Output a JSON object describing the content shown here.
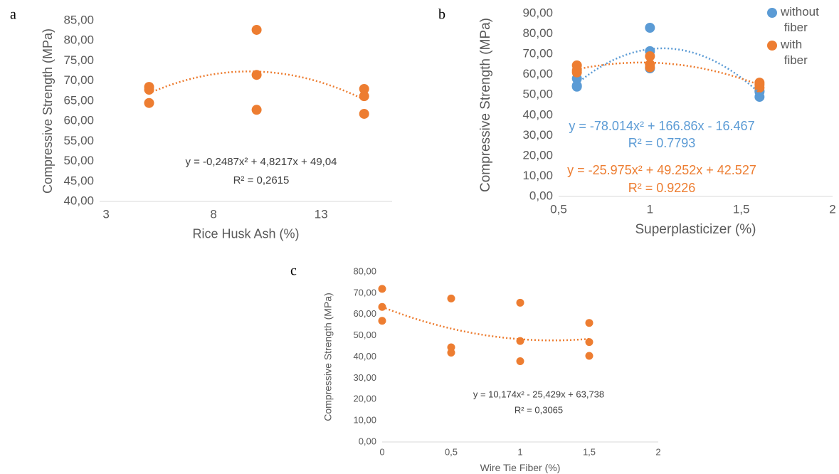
{
  "chart_data": [
    {
      "type": "scatter",
      "panel": "a",
      "x_label": "Rice Husk Ash (%)",
      "y_label": "Compressive Strength (MPa)",
      "x": [
        5,
        5,
        5,
        10,
        10,
        10,
        15,
        15,
        15
      ],
      "values": [
        68.5,
        67.8,
        64.5,
        82.7,
        71.5,
        62.8,
        68.0,
        66.2,
        61.8
      ],
      "color": "#ed7d31",
      "xlim": [
        2.7,
        16.3
      ],
      "xticks": [
        3,
        8,
        13
      ],
      "ylim": [
        40,
        85
      ],
      "yticks": [
        {
          "value": 40,
          "label": "40,00"
        },
        {
          "value": 45,
          "label": "45,00"
        },
        {
          "value": 50,
          "label": "50,00"
        },
        {
          "value": 55,
          "label": "55,00"
        },
        {
          "value": 60,
          "label": "60,00"
        },
        {
          "value": 65,
          "label": "65,00"
        },
        {
          "value": 70,
          "label": "70,00"
        },
        {
          "value": 75,
          "label": "75,00"
        },
        {
          "value": 80,
          "label": "80,00"
        },
        {
          "value": 85,
          "label": "85,00"
        }
      ],
      "annotations": [
        {
          "text": "y = -0,2487x² + 4,8217x + 49,04",
          "color": "#404040"
        },
        {
          "text": "R² = 0,2615",
          "color": "#404040"
        }
      ]
    },
    {
      "type": "scatter",
      "panel": "b",
      "x_label": "Superplasticizer (%)",
      "y_label": "Compressive Strength (MPa)",
      "series": [
        {
          "name": "without fiber",
          "color": "#5b9bd5",
          "x": [
            0.6,
            0.6,
            0.6,
            1,
            1,
            1,
            1.6,
            1.6,
            1.6
          ],
          "values": [
            58,
            54.5,
            54,
            83,
            71.5,
            63,
            52,
            49,
            51.5
          ]
        },
        {
          "name": "with fiber",
          "color": "#ed7d31",
          "x": [
            0.6,
            0.6,
            0.6,
            1,
            1,
            1,
            1.6,
            1.6,
            1.6
          ],
          "values": [
            64.5,
            62,
            61,
            69,
            65,
            63.5,
            56,
            55,
            53.5
          ]
        }
      ],
      "xlim": [
        0.5,
        2
      ],
      "xticks": [
        {
          "value": 0.5,
          "label": "0,5"
        },
        1,
        {
          "value": 1.5,
          "label": "1,5"
        },
        2
      ],
      "ylim": [
        0,
        90
      ],
      "yticks": [
        {
          "value": 0,
          "label": "0,00"
        },
        {
          "value": 10,
          "label": "10,00"
        },
        {
          "value": 20,
          "label": "20,00"
        },
        {
          "value": 30,
          "label": "30,00"
        },
        {
          "value": 40,
          "label": "40,00"
        },
        {
          "value": 50,
          "label": "50,00"
        },
        {
          "value": 60,
          "label": "60,00"
        },
        {
          "value": 70,
          "label": "70,00"
        },
        {
          "value": 80,
          "label": "80,00"
        },
        {
          "value": 90,
          "label": "90,00"
        }
      ],
      "annotations": [
        {
          "text": "y = -78.014x² + 166.86x - 16.467",
          "color": "#5b9bd5"
        },
        {
          "text": "R² = 0.7793",
          "color": "#5b9bd5"
        },
        {
          "text": "y = -25.975x² + 49.252x + 42.527",
          "color": "#ed7d31"
        },
        {
          "text": "R² = 0.9226",
          "color": "#ed7d31"
        }
      ],
      "legend": "top-right"
    },
    {
      "type": "scatter",
      "panel": "c",
      "x_label": "Wire Tie Fiber (%)",
      "y_label": "Compressive Strength (MPa)",
      "x": [
        0,
        0,
        0,
        0.5,
        0.5,
        0.5,
        1,
        1,
        1,
        1.5,
        1.5,
        1.5
      ],
      "values": [
        72,
        63.5,
        57,
        67.5,
        44.5,
        42,
        65.5,
        47.5,
        38,
        56,
        47,
        40.5
      ],
      "color": "#ed7d31",
      "xlim": [
        0,
        2
      ],
      "xticks": [
        0,
        {
          "value": 0.5,
          "label": "0,5"
        },
        1,
        {
          "value": 1.5,
          "label": "1,5"
        },
        2
      ],
      "ylim": [
        0,
        80
      ],
      "yticks": [
        {
          "value": 0,
          "label": "0,00"
        },
        {
          "value": 10,
          "label": "10,00"
        },
        {
          "value": 20,
          "label": "20,00"
        },
        {
          "value": 30,
          "label": "30,00"
        },
        {
          "value": 40,
          "label": "40,00"
        },
        {
          "value": 50,
          "label": "50,00"
        },
        {
          "value": 60,
          "label": "60,00"
        },
        {
          "value": 70,
          "label": "70,00"
        },
        {
          "value": 80,
          "label": "80,00"
        }
      ],
      "annotations": [
        {
          "text": "y = 10,174x² - 25,429x + 63,738",
          "color": "#404040"
        },
        {
          "text": "R² = 0,3065",
          "color": "#404040"
        }
      ]
    }
  ]
}
